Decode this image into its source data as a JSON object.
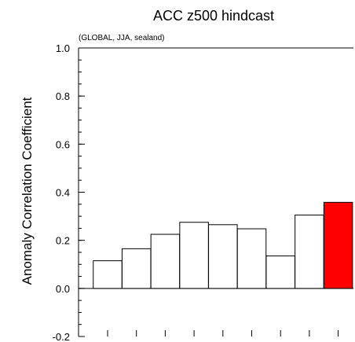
{
  "chart_data": {
    "type": "bar",
    "title": "ACC z500 hindcast",
    "subtitle": "(GLOBAL, JJA, sealand)",
    "xlabel": "",
    "ylabel": "Anomaly Correlation Coefficient",
    "ylim": [
      -0.2,
      1.0
    ],
    "yticks": [
      -0.2,
      0.0,
      0.2,
      0.4,
      0.6,
      0.8,
      1.0
    ],
    "ytick_labels": [
      "-0.2",
      "0.0",
      "0.2",
      "0.4",
      "0.6",
      "0.8",
      "1.0"
    ],
    "values": [
      0.115,
      0.165,
      0.225,
      0.275,
      0.265,
      0.248,
      0.135,
      0.305,
      0.358
    ],
    "bar_colors": [
      "#ffffff",
      "#ffffff",
      "#ffffff",
      "#ffffff",
      "#ffffff",
      "#ffffff",
      "#ffffff",
      "#ffffff",
      "#ff0000"
    ],
    "highlight_color": "#ff0000",
    "grid": false,
    "legend": "none"
  }
}
